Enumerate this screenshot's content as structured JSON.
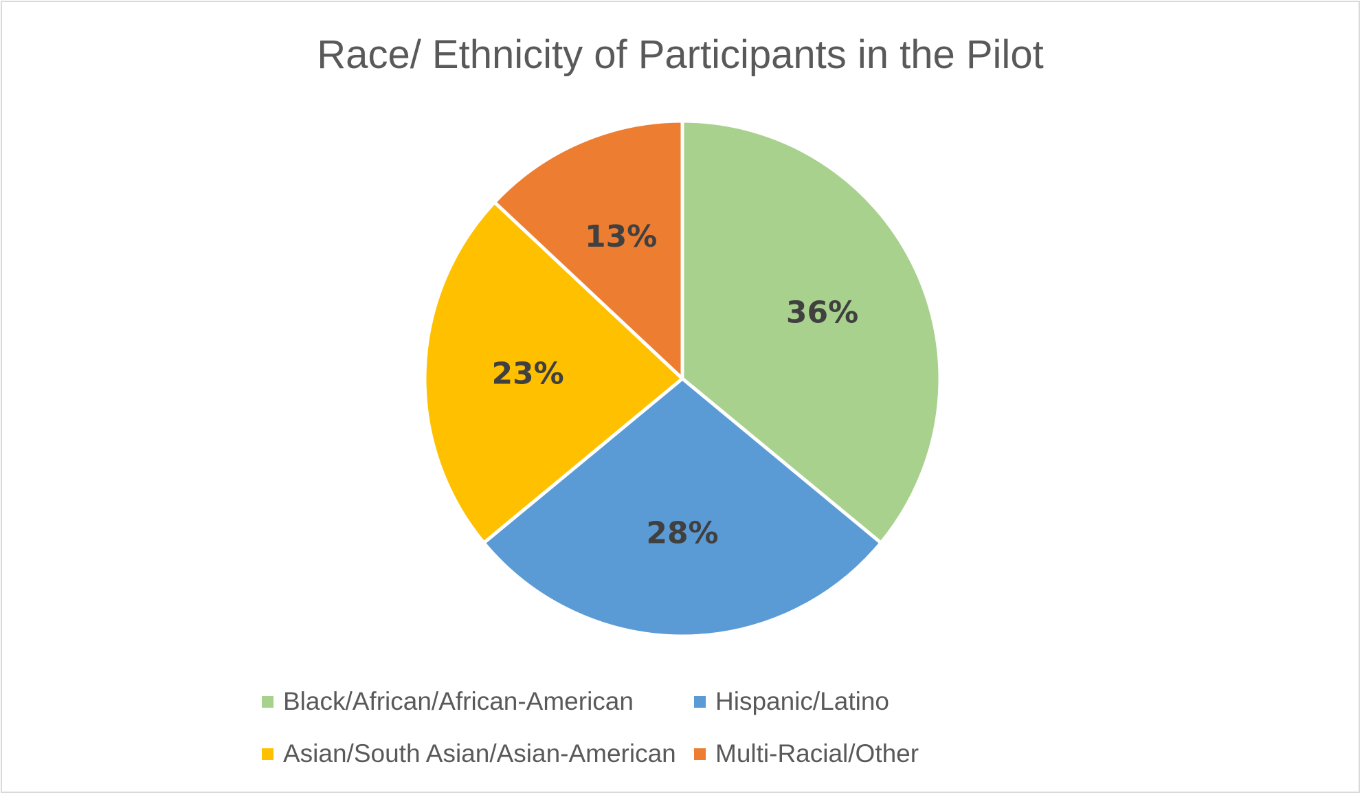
{
  "chart_data": {
    "type": "pie",
    "title": "Race/ Ethnicity of Participants in the Pilot",
    "categories": [
      "Black/African/African-American",
      "Hispanic/Latino",
      "Asian/South Asian/Asian-American",
      "Multi-Racial/Other"
    ],
    "values": [
      36,
      28,
      23,
      13
    ],
    "data_labels": [
      "36%",
      "28%",
      "23%",
      "13%"
    ],
    "colors": [
      "#a9d18e",
      "#5b9bd5",
      "#ffc000",
      "#ed7d31"
    ],
    "start_angle": "12 o'clock",
    "direction": "clockwise",
    "legend": {
      "placement": "bottom",
      "items": [
        "Black/African/African-American",
        "Hispanic/Latino",
        "Asian/South Asian/Asian-American",
        "Multi-Racial/Other"
      ]
    }
  }
}
